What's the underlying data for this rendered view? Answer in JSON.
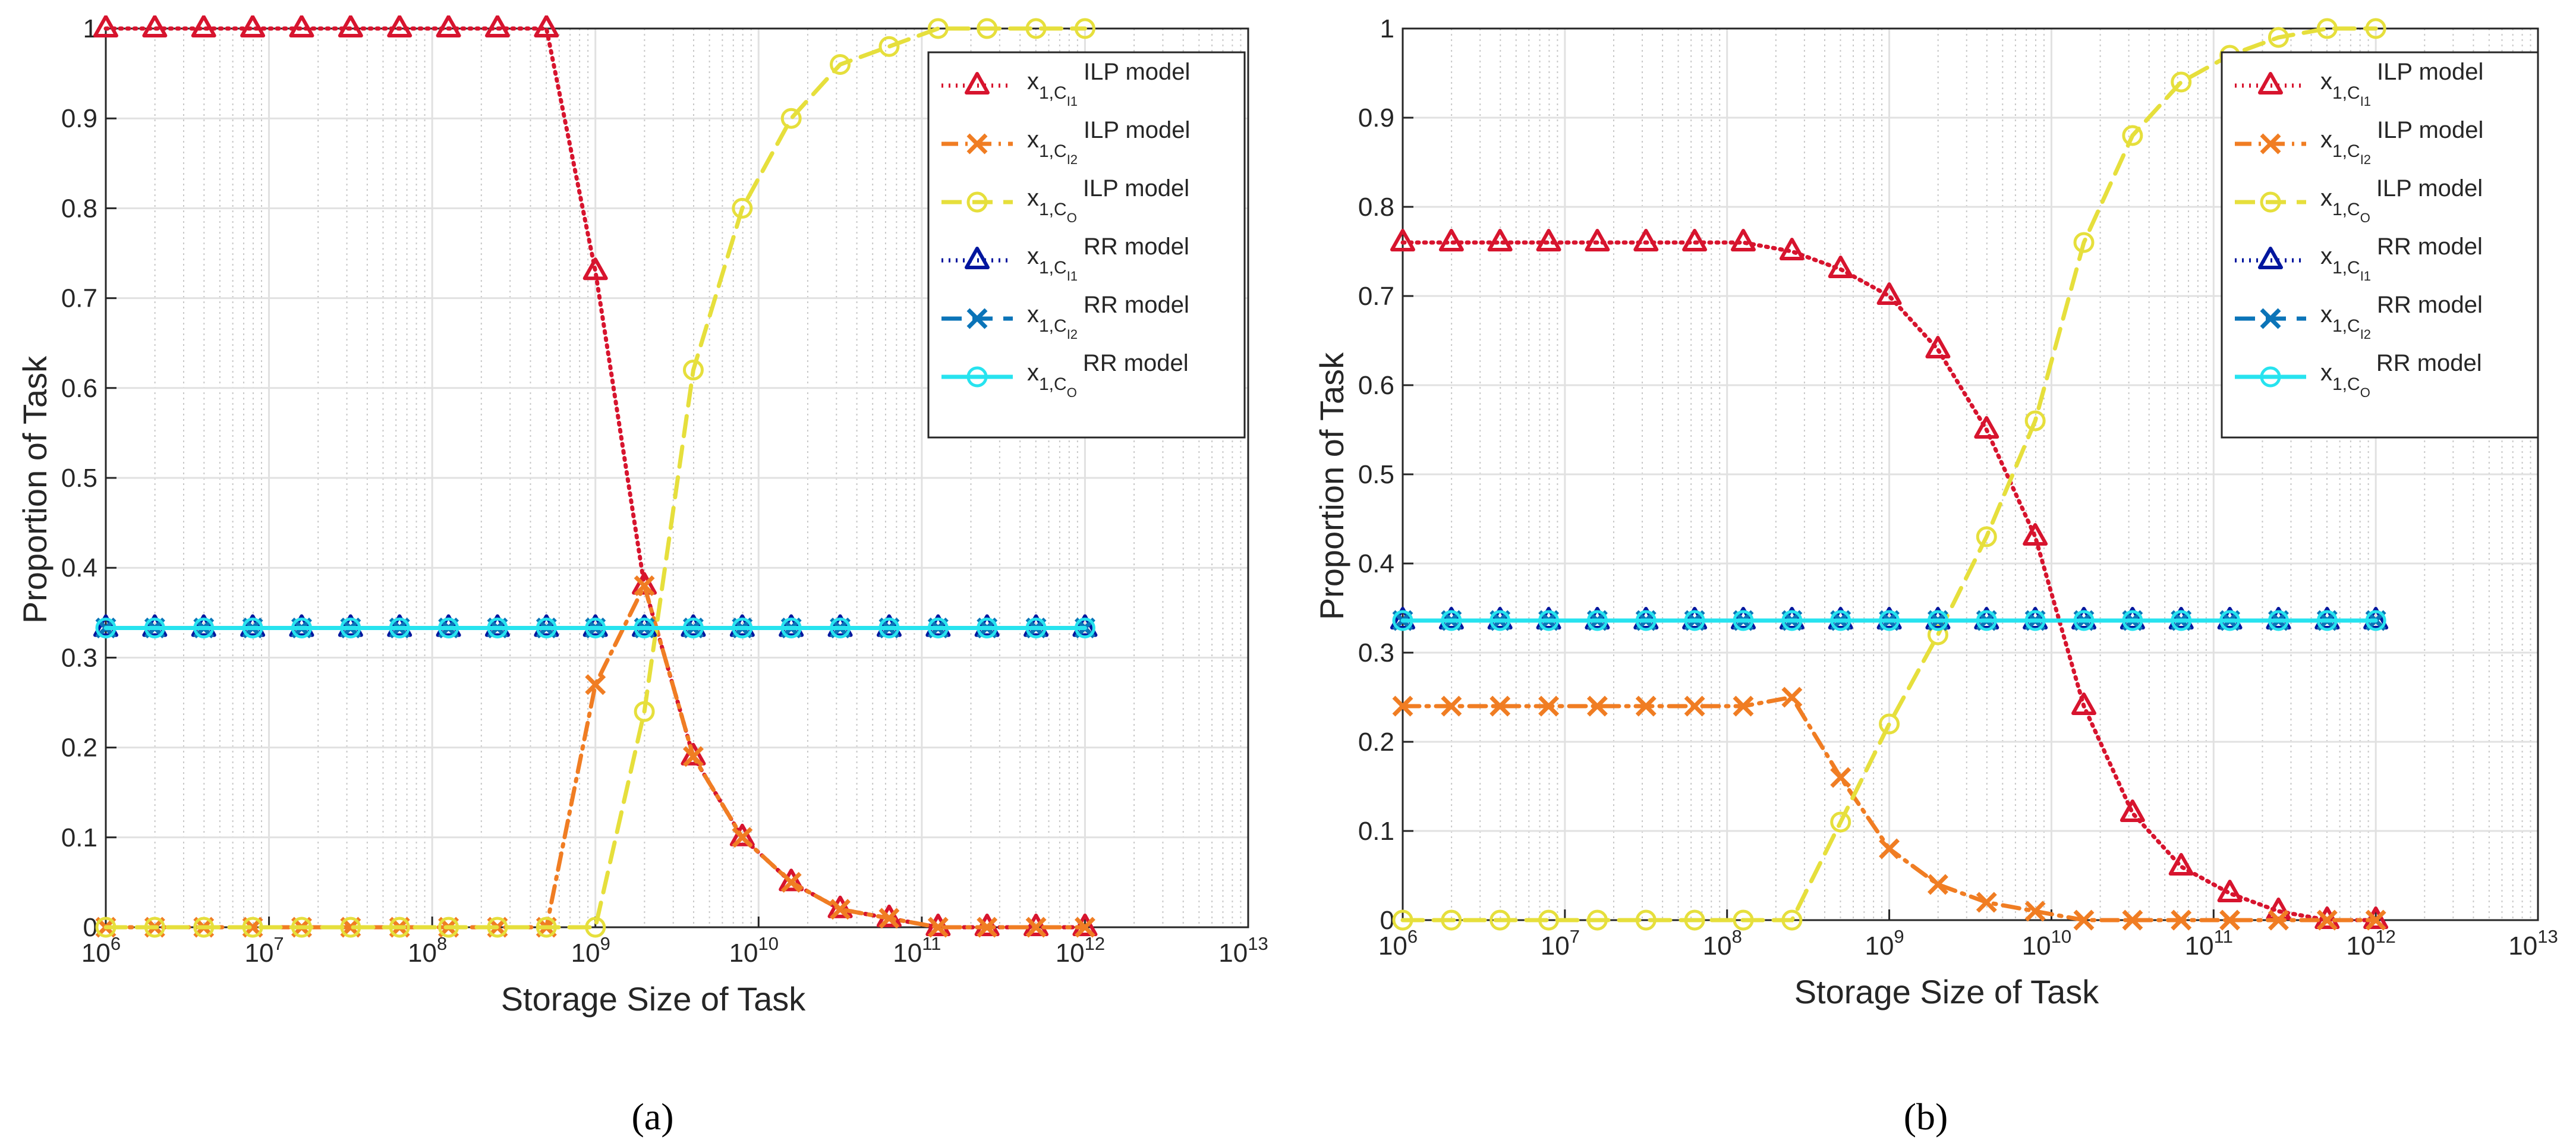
{
  "chart_data": [
    {
      "type": "line",
      "panel_label": "a",
      "title": "",
      "xlabel": "Storage Size of Task",
      "ylabel": "Proportion of Task",
      "xscale": "log",
      "xlim_exp": [
        6,
        13
      ],
      "ylim": [
        0,
        1
      ],
      "grid": true,
      "legend_position": "top-right",
      "x_exp": [
        6.0,
        6.3,
        6.6,
        6.9,
        7.2,
        7.5,
        7.8,
        8.1,
        8.4,
        8.7,
        9.0,
        9.3,
        9.6,
        9.9,
        10.2,
        10.5,
        10.8,
        11.1,
        11.4,
        11.7,
        12.0
      ],
      "series": [
        {
          "name": "ILP model",
          "symbol": {
            "base": "x",
            "sub": "1,C",
            "subsub": "I1"
          },
          "color": "#d7142e",
          "dash": "dot",
          "marker": "triangle",
          "values": [
            1,
            1,
            1,
            1,
            1,
            1,
            1,
            1,
            1,
            1,
            0.73,
            0.38,
            0.19,
            0.1,
            0.05,
            0.02,
            0.01,
            0,
            0,
            0,
            0
          ]
        },
        {
          "name": "ILP model",
          "symbol": {
            "base": "x",
            "sub": "1,C",
            "subsub": "I2"
          },
          "color": "#f07d23",
          "dash": "dashdot",
          "marker": "x",
          "values": [
            0,
            0,
            0,
            0,
            0,
            0,
            0,
            0,
            0,
            0,
            0.27,
            0.38,
            0.19,
            0.1,
            0.05,
            0.02,
            0.01,
            0,
            0,
            0,
            0
          ]
        },
        {
          "name": "ILP model",
          "symbol": {
            "base": "x",
            "sub": "1,C",
            "subsub": "O"
          },
          "color": "#e6df3c",
          "dash": "dash",
          "marker": "circle",
          "values": [
            0,
            0,
            0,
            0,
            0,
            0,
            0,
            0,
            0,
            0,
            0,
            0.24,
            0.62,
            0.8,
            0.9,
            0.96,
            0.98,
            1,
            1,
            1,
            1
          ]
        },
        {
          "name": "RR model",
          "symbol": {
            "base": "x",
            "sub": "1,C",
            "subsub": "I1"
          },
          "color": "#00169e",
          "dash": "dot",
          "marker": "triangle",
          "values": [
            0.333,
            0.333,
            0.333,
            0.333,
            0.333,
            0.333,
            0.333,
            0.333,
            0.333,
            0.333,
            0.333,
            0.333,
            0.333,
            0.333,
            0.333,
            0.333,
            0.333,
            0.333,
            0.333,
            0.333,
            0.333
          ]
        },
        {
          "name": "RR model",
          "symbol": {
            "base": "x",
            "sub": "1,C",
            "subsub": "I2"
          },
          "color": "#0b74b8",
          "dash": "dash",
          "marker": "x",
          "values": [
            0.333,
            0.333,
            0.333,
            0.333,
            0.333,
            0.333,
            0.333,
            0.333,
            0.333,
            0.333,
            0.333,
            0.333,
            0.333,
            0.333,
            0.333,
            0.333,
            0.333,
            0.333,
            0.333,
            0.333,
            0.333
          ]
        },
        {
          "name": "RR model",
          "symbol": {
            "base": "x",
            "sub": "1,C",
            "subsub": "O"
          },
          "color": "#27e3ef",
          "dash": "solid",
          "marker": "circle",
          "values": [
            0.333,
            0.333,
            0.333,
            0.333,
            0.333,
            0.333,
            0.333,
            0.333,
            0.333,
            0.333,
            0.333,
            0.333,
            0.333,
            0.333,
            0.333,
            0.333,
            0.333,
            0.333,
            0.333,
            0.333,
            0.333
          ]
        }
      ]
    },
    {
      "type": "line",
      "panel_label": "b",
      "title": "",
      "xlabel": "Storage Size of Task",
      "ylabel": "Proportion of Task",
      "xscale": "log",
      "xlim_exp": [
        6,
        13
      ],
      "ylim": [
        0,
        1
      ],
      "grid": true,
      "legend_position": "top-right",
      "x_exp": [
        6.0,
        6.3,
        6.6,
        6.9,
        7.2,
        7.5,
        7.8,
        8.1,
        8.4,
        8.7,
        9.0,
        9.3,
        9.6,
        9.9,
        10.2,
        10.5,
        10.8,
        11.1,
        11.4,
        11.7,
        12.0
      ],
      "series": [
        {
          "name": "ILP model",
          "symbol": {
            "base": "x",
            "sub": "1,C",
            "subsub": "I1"
          },
          "color": "#d7142e",
          "dash": "dot",
          "marker": "triangle",
          "values": [
            0.76,
            0.76,
            0.76,
            0.76,
            0.76,
            0.76,
            0.76,
            0.76,
            0.75,
            0.73,
            0.7,
            0.64,
            0.55,
            0.43,
            0.24,
            0.12,
            0.06,
            0.03,
            0.01,
            0,
            0
          ]
        },
        {
          "name": "ILP model",
          "symbol": {
            "base": "x",
            "sub": "1,C",
            "subsub": "I2"
          },
          "color": "#f07d23",
          "dash": "dashdot",
          "marker": "x",
          "values": [
            0.24,
            0.24,
            0.24,
            0.24,
            0.24,
            0.24,
            0.24,
            0.24,
            0.25,
            0.16,
            0.08,
            0.04,
            0.02,
            0.01,
            0,
            0,
            0,
            0,
            0,
            0,
            0
          ]
        },
        {
          "name": "ILP model",
          "symbol": {
            "base": "x",
            "sub": "1,C",
            "subsub": "O"
          },
          "color": "#e6df3c",
          "dash": "dash",
          "marker": "circle",
          "values": [
            0,
            0,
            0,
            0,
            0,
            0,
            0,
            0,
            0,
            0.11,
            0.22,
            0.32,
            0.43,
            0.56,
            0.76,
            0.88,
            0.94,
            0.97,
            0.99,
            1,
            1
          ]
        },
        {
          "name": "RR model",
          "symbol": {
            "base": "x",
            "sub": "1,C",
            "subsub": "I1"
          },
          "color": "#00169e",
          "dash": "dot",
          "marker": "triangle",
          "values": [
            0.336,
            0.336,
            0.336,
            0.336,
            0.336,
            0.336,
            0.336,
            0.336,
            0.336,
            0.336,
            0.336,
            0.336,
            0.336,
            0.336,
            0.336,
            0.336,
            0.336,
            0.336,
            0.336,
            0.336,
            0.336
          ]
        },
        {
          "name": "RR model",
          "symbol": {
            "base": "x",
            "sub": "1,C",
            "subsub": "I2"
          },
          "color": "#0b74b8",
          "dash": "dash",
          "marker": "x",
          "values": [
            0.336,
            0.336,
            0.336,
            0.336,
            0.336,
            0.336,
            0.336,
            0.336,
            0.336,
            0.336,
            0.336,
            0.336,
            0.336,
            0.336,
            0.336,
            0.336,
            0.336,
            0.336,
            0.336,
            0.336,
            0.336
          ]
        },
        {
          "name": "RR model",
          "symbol": {
            "base": "x",
            "sub": "1,C",
            "subsub": "O"
          },
          "color": "#27e3ef",
          "dash": "solid",
          "marker": "circle",
          "values": [
            0.336,
            0.336,
            0.336,
            0.336,
            0.336,
            0.336,
            0.336,
            0.336,
            0.336,
            0.336,
            0.336,
            0.336,
            0.336,
            0.336,
            0.336,
            0.336,
            0.336,
            0.336,
            0.336,
            0.336,
            0.336
          ]
        }
      ]
    }
  ],
  "captions": [
    "(a)",
    "(b)"
  ]
}
